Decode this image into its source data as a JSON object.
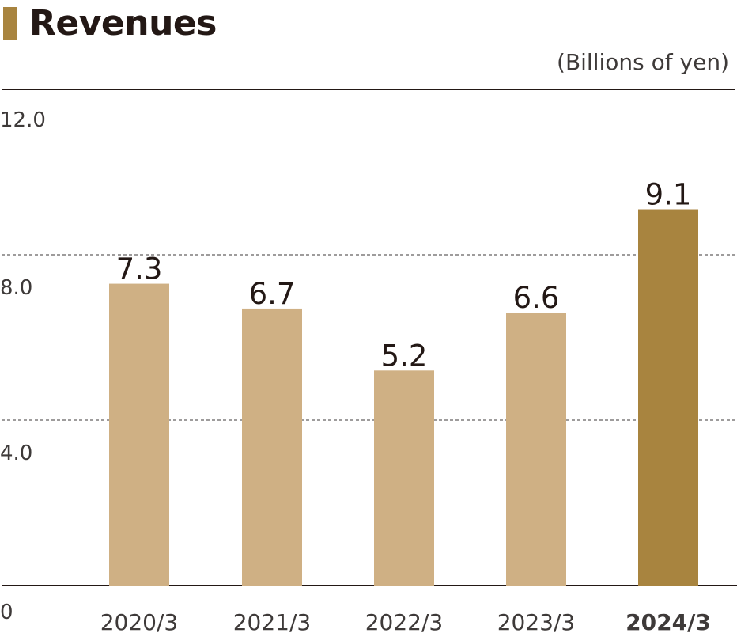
{
  "colors": {
    "accent": "#a8843f",
    "bar_normal": "#cfb084",
    "bar_highlight": "#a8843f",
    "text": "#231815",
    "grid": "#3e3a39"
  },
  "chart_data": {
    "type": "bar",
    "title": "Revenues",
    "unit_label": "(Billions of yen)",
    "categories": [
      "2020/3",
      "2021/3",
      "2022/3",
      "2023/3",
      "2024/3"
    ],
    "values": [
      7.3,
      6.7,
      5.2,
      6.6,
      9.1
    ],
    "data_labels": [
      "7.3",
      "6.7",
      "5.2",
      "6.6",
      "9.1"
    ],
    "highlight_index": 4,
    "yticks": [
      "12.0",
      "8.0",
      "4.0",
      "0"
    ],
    "ytick_values": [
      12,
      8,
      4,
      0
    ],
    "ylim": [
      0,
      12
    ],
    "gridlines": "dashed",
    "xlabel": "",
    "ylabel": ""
  }
}
